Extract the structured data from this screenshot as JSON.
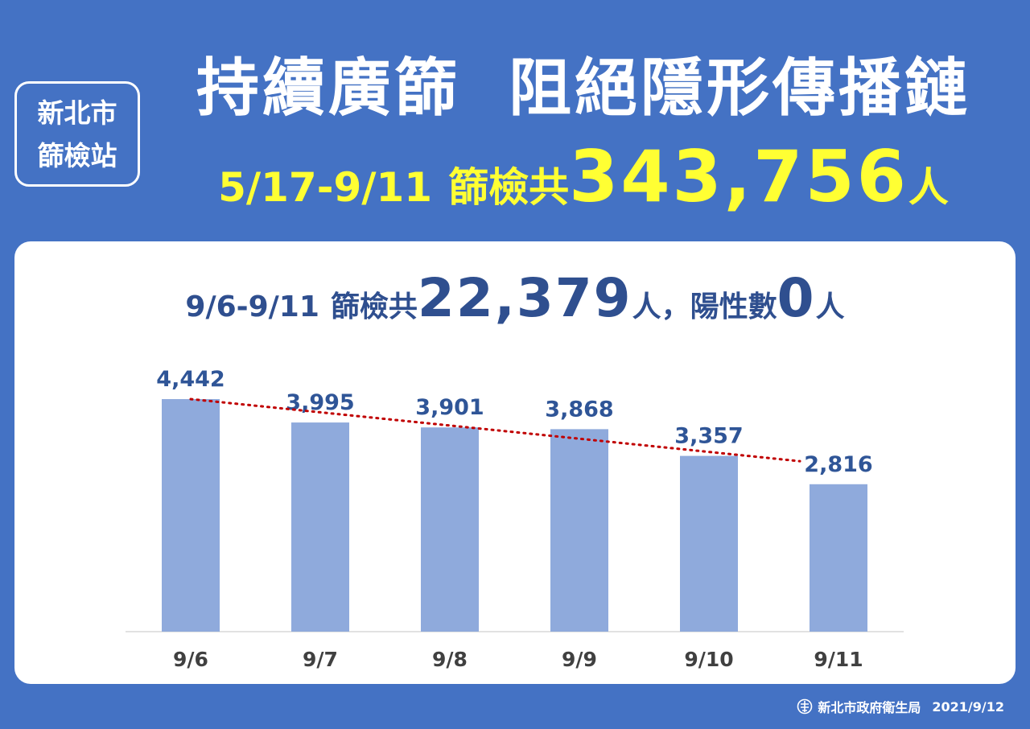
{
  "badge": {
    "line1": "新北市",
    "line2": "篩檢站"
  },
  "headline": {
    "part1": "持續廣篩",
    "part2": "阻絕隱形傳播鏈"
  },
  "summary": {
    "range": "5/17-9/11",
    "label": "篩檢共",
    "total": "343,756",
    "unit": "人"
  },
  "subhead": {
    "range": "9/6-9/11",
    "label": "篩檢共",
    "total": "22,379",
    "unit": "人",
    "positive_label": "，陽性數",
    "positive": "0",
    "positive_unit": "人"
  },
  "chart_data": {
    "type": "bar",
    "categories": [
      "9/6",
      "9/7",
      "9/8",
      "9/9",
      "9/10",
      "9/11"
    ],
    "values": [
      4442,
      3995,
      3901,
      3868,
      3357,
      2816
    ],
    "value_labels": [
      "4,442",
      "3,995",
      "3,901",
      "3,868",
      "3,357",
      "2,816"
    ],
    "trendline": "linear, dotted",
    "bar_color": "#8faadc",
    "trend_color": "#c00000",
    "label_color": "#2f5597",
    "category_color": "#404040",
    "ylim": [
      0,
      4600
    ]
  },
  "footer": {
    "agency": "新北市政府衛生局",
    "date": "2021/9/12"
  },
  "colors": {
    "background": "#4472c4",
    "highlight": "#ffff33",
    "card": "#ffffff"
  }
}
